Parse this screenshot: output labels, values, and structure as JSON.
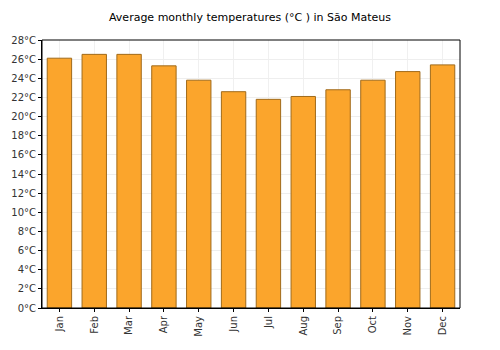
{
  "chart_data": {
    "type": "bar",
    "title": "Average monthly temperatures (°C ) in São Mateus",
    "categories": [
      "Jan",
      "Feb",
      "Mar",
      "Apr",
      "May",
      "Jun",
      "Jul",
      "Aug",
      "Sep",
      "Oct",
      "Nov",
      "Dec"
    ],
    "values": [
      26.1,
      26.5,
      26.5,
      25.3,
      23.8,
      22.6,
      21.8,
      22.1,
      22.8,
      23.8,
      24.7,
      25.4
    ],
    "color": "#fba52c",
    "ylim": [
      0,
      28
    ],
    "yticks": [
      {
        "value": 0,
        "label": "0°C"
      },
      {
        "value": 2,
        "label": "2°C"
      },
      {
        "value": 4,
        "label": "4°C"
      },
      {
        "value": 6,
        "label": "6°C"
      },
      {
        "value": 8,
        "label": "8°C"
      },
      {
        "value": 10,
        "label": "10°C"
      },
      {
        "value": 12,
        "label": "12°C"
      },
      {
        "value": 14,
        "label": "14°C"
      },
      {
        "value": 16,
        "label": "16°C"
      },
      {
        "value": 18,
        "label": "18°C"
      },
      {
        "value": 20,
        "label": "20°C"
      },
      {
        "value": 22,
        "label": "22°C"
      },
      {
        "value": 24,
        "label": "24°C"
      },
      {
        "value": 26,
        "label": "26°C"
      },
      {
        "value": 28,
        "label": "28°C"
      }
    ],
    "grid": true
  }
}
